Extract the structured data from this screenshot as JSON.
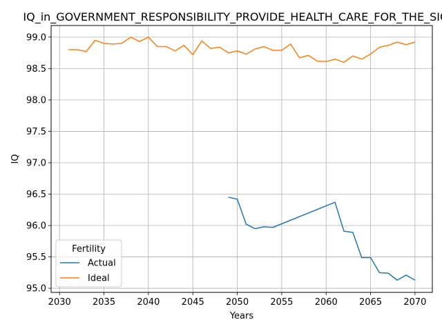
{
  "chart_data": {
    "type": "line",
    "title": "IQ_in_GOVERNMENT_RESPONSIBILITY_PROVIDE_HEALTH_CARE_FOR_THE_SICK_",
    "xlabel": "Years",
    "ylabel": "IQ",
    "xlim": [
      2029.05,
      2071.95
    ],
    "ylim": [
      94.935,
      99.185
    ],
    "xticks": [
      2030,
      2035,
      2040,
      2045,
      2050,
      2055,
      2060,
      2065,
      2070
    ],
    "yticks": [
      95.0,
      95.5,
      96.0,
      96.5,
      97.0,
      97.5,
      98.0,
      98.5,
      99.0
    ],
    "grid": true,
    "legend": {
      "title": "Fertility",
      "position": "lower-left"
    },
    "series": [
      {
        "name": "Actual",
        "color": "#1f77b4",
        "x": [
          2049,
          2050,
          2051,
          2052,
          2053,
          2054,
          2061,
          2062,
          2063,
          2064,
          2065,
          2066,
          2067,
          2068,
          2069,
          2070
        ],
        "y": [
          96.45,
          96.42,
          96.02,
          95.95,
          95.98,
          95.97,
          96.37,
          95.91,
          95.89,
          95.49,
          95.49,
          95.25,
          95.24,
          95.13,
          95.21,
          95.13
        ]
      },
      {
        "name": "Ideal",
        "color": "#ff7f0e",
        "x": [
          2031,
          2032,
          2033,
          2034,
          2035,
          2036,
          2037,
          2038,
          2039,
          2040,
          2041,
          2042,
          2043,
          2044,
          2045,
          2046,
          2047,
          2048,
          2049,
          2050,
          2051,
          2052,
          2053,
          2054,
          2055,
          2056,
          2057,
          2058,
          2059,
          2060,
          2061,
          2062,
          2063,
          2064,
          2065,
          2066,
          2067,
          2068,
          2069,
          2070
        ],
        "y": [
          98.8,
          98.8,
          98.77,
          98.95,
          98.9,
          98.89,
          98.9,
          99.0,
          98.93,
          99.0,
          98.85,
          98.85,
          98.78,
          98.87,
          98.72,
          98.94,
          98.82,
          98.84,
          98.75,
          98.78,
          98.73,
          98.81,
          98.85,
          98.79,
          98.79,
          98.89,
          98.67,
          98.71,
          98.62,
          98.61,
          98.65,
          98.6,
          98.7,
          98.65,
          98.73,
          98.84,
          98.87,
          98.92,
          98.88,
          98.92
        ]
      }
    ]
  }
}
